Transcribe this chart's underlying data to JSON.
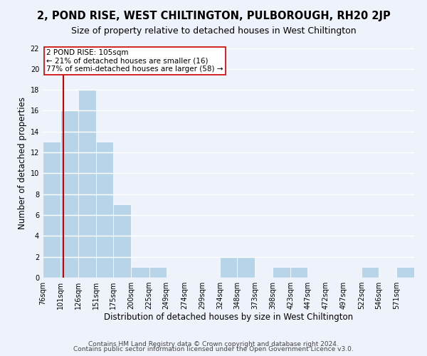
{
  "title": "2, POND RISE, WEST CHILTINGTON, PULBOROUGH, RH20 2JP",
  "subtitle": "Size of property relative to detached houses in West Chiltington",
  "xlabel": "Distribution of detached houses by size in West Chiltington",
  "ylabel": "Number of detached properties",
  "footer1": "Contains HM Land Registry data © Crown copyright and database right 2024.",
  "footer2": "Contains public sector information licensed under the Open Government Licence v3.0.",
  "bin_labels": [
    "76sqm",
    "101sqm",
    "126sqm",
    "151sqm",
    "175sqm",
    "200sqm",
    "225sqm",
    "249sqm",
    "274sqm",
    "299sqm",
    "324sqm",
    "348sqm",
    "373sqm",
    "398sqm",
    "423sqm",
    "447sqm",
    "472sqm",
    "497sqm",
    "522sqm",
    "546sqm",
    "571sqm"
  ],
  "bin_edges": [
    76,
    101,
    126,
    151,
    175,
    200,
    225,
    249,
    274,
    299,
    324,
    348,
    373,
    398,
    423,
    447,
    472,
    497,
    522,
    546,
    571,
    596
  ],
  "bar_heights": [
    13,
    16,
    18,
    13,
    7,
    1,
    1,
    0,
    0,
    0,
    2,
    2,
    0,
    1,
    1,
    0,
    0,
    0,
    1,
    0,
    1
  ],
  "bar_color": "#b8d4e8",
  "property_line_x": 105,
  "property_line_color": "#cc0000",
  "annotation_line1": "2 POND RISE: 105sqm",
  "annotation_line2": "← 21% of detached houses are smaller (16)",
  "annotation_line3": "77% of semi-detached houses are larger (58) →",
  "annotation_box_color": "#ffffff",
  "annotation_box_edge": "#cc0000",
  "ylim": [
    0,
    22
  ],
  "xlim_min": 76,
  "xlim_max": 596,
  "background_color": "#eef2fa",
  "grid_color": "#ffffff",
  "title_fontsize": 10.5,
  "subtitle_fontsize": 9,
  "axis_label_fontsize": 8.5,
  "tick_fontsize": 7,
  "annotation_fontsize": 7.5,
  "footer_fontsize": 6.5
}
